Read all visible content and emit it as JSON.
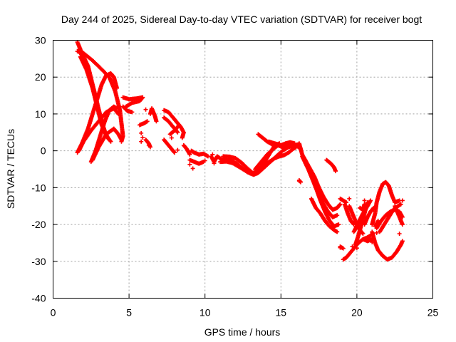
{
  "chart_data": {
    "type": "scatter",
    "title": "Day 244 of 2025, Sidereal Day-to-day VTEC variation (SDTVAR) for receiver bogt",
    "xlabel": "GPS time / hours",
    "ylabel": "SDTVAR / TECUs",
    "xlim": [
      0,
      25
    ],
    "ylim": [
      -40,
      30
    ],
    "x_ticks": [
      "0",
      "5",
      "10",
      "15",
      "20",
      "25"
    ],
    "y_ticks": [
      "30",
      "20",
      "10",
      "0",
      "-10",
      "-20",
      "-30",
      "-40"
    ],
    "grid": true,
    "legend": "none",
    "marker": "+",
    "color": "#ff0000",
    "tracks": [
      [
        [
          1.6,
          29.5
        ],
        [
          1.9,
          26.5
        ],
        [
          2.3,
          23
        ],
        [
          2.6,
          18
        ],
        [
          2.9,
          13
        ],
        [
          3.2,
          8
        ],
        [
          3.5,
          4
        ],
        [
          3.8,
          2.5
        ]
      ],
      [
        [
          1.7,
          27.5
        ],
        [
          2.1,
          24
        ],
        [
          2.5,
          19
        ],
        [
          2.8,
          14
        ],
        [
          3.1,
          9
        ],
        [
          3.4,
          5
        ],
        [
          3.7,
          3
        ]
      ],
      [
        [
          1.8,
          25.5
        ],
        [
          2.2,
          22
        ],
        [
          2.6,
          17
        ],
        [
          2.9,
          12
        ],
        [
          3.2,
          7
        ],
        [
          3.6,
          3.5
        ]
      ],
      [
        [
          1.6,
          27
        ],
        [
          2.0,
          26.5
        ],
        [
          2.6,
          24.5
        ],
        [
          3.1,
          22.5
        ],
        [
          3.7,
          20
        ],
        [
          4.1,
          16
        ],
        [
          4.4,
          11
        ],
        [
          4.6,
          4
        ],
        [
          4.5,
          2.5
        ]
      ],
      [
        [
          1.6,
          -0.5
        ],
        [
          1.9,
          2
        ],
        [
          2.3,
          6
        ],
        [
          2.6,
          10
        ],
        [
          2.9,
          14
        ],
        [
          3.2,
          18
        ],
        [
          3.5,
          20.5
        ],
        [
          3.8,
          21
        ],
        [
          4.0,
          20
        ],
        [
          4.2,
          17
        ]
      ],
      [
        [
          2.5,
          -3
        ],
        [
          2.8,
          0
        ],
        [
          3.1,
          4
        ],
        [
          3.4,
          8
        ],
        [
          3.7,
          11
        ],
        [
          4.0,
          12
        ],
        [
          4.2,
          11.5
        ]
      ],
      [
        [
          1.7,
          0
        ],
        [
          2.0,
          2.5
        ],
        [
          2.5,
          5.5
        ],
        [
          3.0,
          8
        ],
        [
          3.5,
          10.5
        ],
        [
          4.0,
          11.5
        ],
        [
          4.3,
          10
        ]
      ],
      [
        [
          2.6,
          -2.5
        ],
        [
          3.0,
          1
        ],
        [
          3.5,
          4.5
        ],
        [
          4.0,
          6
        ],
        [
          4.3,
          4.5
        ],
        [
          4.5,
          3
        ]
      ],
      [
        [
          4.6,
          14.5
        ],
        [
          5.0,
          14
        ],
        [
          5.5,
          14.2
        ],
        [
          5.9,
          14.5
        ],
        [
          5.7,
          13.5
        ],
        [
          5.2,
          13
        ],
        [
          4.8,
          12
        ]
      ],
      [
        [
          4.6,
          12
        ],
        [
          4.9,
          10.8
        ],
        [
          5.2,
          10.5
        ]
      ],
      [
        [
          5.7,
          7
        ],
        [
          6.0,
          7.5
        ],
        [
          6.2,
          8
        ]
      ],
      [
        [
          6.1,
          3
        ],
        [
          6.3,
          2
        ],
        [
          6.4,
          1
        ]
      ],
      [
        [
          6.4,
          10
        ],
        [
          6.5,
          11.5
        ],
        [
          6.7,
          9.5
        ],
        [
          6.8,
          8
        ]
      ],
      [
        [
          7.3,
          11
        ],
        [
          7.6,
          10.5
        ],
        [
          7.9,
          9
        ],
        [
          8.1,
          8
        ],
        [
          8.4,
          6.5
        ],
        [
          8.6,
          5
        ],
        [
          8.5,
          3.5
        ]
      ],
      [
        [
          7.3,
          9
        ],
        [
          7.6,
          8
        ],
        [
          7.9,
          6.5
        ],
        [
          8.2,
          5
        ]
      ],
      [
        [
          7.7,
          4.5
        ],
        [
          8.0,
          5.5
        ],
        [
          8.3,
          7
        ]
      ],
      [
        [
          7.3,
          3
        ],
        [
          7.6,
          1.5
        ],
        [
          7.9,
          0
        ],
        [
          8.0,
          -0.5
        ]
      ],
      [
        [
          8.6,
          1.5
        ],
        [
          8.8,
          0.5
        ],
        [
          9.0,
          -1
        ]
      ],
      [
        [
          9.1,
          0
        ],
        [
          9.3,
          -0.5
        ],
        [
          9.6,
          -1
        ],
        [
          9.9,
          -0.8
        ],
        [
          10.2,
          -1.5
        ]
      ],
      [
        [
          9.0,
          -2.5
        ],
        [
          9.3,
          -3
        ],
        [
          9.6,
          -3.5
        ],
        [
          9.9,
          -3
        ]
      ],
      [
        [
          10.4,
          -1.5
        ],
        [
          10.6,
          -3
        ],
        [
          10.8,
          -1.5
        ],
        [
          11.1,
          -2.3
        ],
        [
          11.4,
          -2.4
        ],
        [
          11.8,
          -2.8
        ],
        [
          12.1,
          -3.5
        ],
        [
          12.4,
          -4.5
        ],
        [
          12.8,
          -5.8
        ],
        [
          13.1,
          -6.2
        ],
        [
          13.4,
          -5.5
        ],
        [
          13.7,
          -4.6
        ],
        [
          14.0,
          -3.5
        ],
        [
          14.3,
          -2.8
        ],
        [
          14.6,
          -2
        ],
        [
          14.9,
          -1.5
        ],
        [
          15.2,
          -1.2
        ],
        [
          15.5,
          -0.5
        ],
        [
          15.8,
          0.5
        ],
        [
          16.0,
          1
        ]
      ],
      [
        [
          11.0,
          -3
        ],
        [
          11.4,
          -2.9
        ],
        [
          11.8,
          -3.3
        ],
        [
          12.1,
          -4
        ],
        [
          12.5,
          -5
        ],
        [
          12.9,
          -6
        ],
        [
          13.2,
          -6.5
        ],
        [
          13.5,
          -6
        ],
        [
          13.9,
          -4.5
        ],
        [
          14.3,
          -3
        ],
        [
          14.7,
          -1.5
        ],
        [
          15.1,
          0
        ],
        [
          15.5,
          1
        ],
        [
          15.9,
          1.5
        ],
        [
          16.2,
          1.8
        ]
      ],
      [
        [
          11.2,
          -1.5
        ],
        [
          11.6,
          -1.6
        ],
        [
          12.0,
          -2
        ],
        [
          12.4,
          -3.2
        ],
        [
          12.8,
          -4.8
        ],
        [
          13.2,
          -6.2
        ],
        [
          13.6,
          -5
        ],
        [
          14.0,
          -2.5
        ],
        [
          14.3,
          -0.5
        ],
        [
          14.6,
          1.5
        ],
        [
          14.9,
          2
        ]
      ],
      [
        [
          13.3,
          -5
        ],
        [
          13.7,
          -3
        ],
        [
          14.1,
          -1
        ],
        [
          14.5,
          0.5
        ],
        [
          14.8,
          1.5
        ]
      ],
      [
        [
          13.5,
          4.5
        ],
        [
          13.8,
          3.5
        ],
        [
          14.1,
          2.5
        ],
        [
          14.4,
          1.8
        ],
        [
          14.8,
          1.5
        ],
        [
          15.1,
          1
        ],
        [
          15.4,
          1.5
        ],
        [
          15.7,
          2
        ],
        [
          16.0,
          1.5
        ],
        [
          16.3,
          0.5
        ]
      ],
      [
        [
          14.2,
          2.5
        ],
        [
          14.6,
          2
        ],
        [
          15.0,
          1.5
        ],
        [
          15.3,
          2
        ],
        [
          15.6,
          2.3
        ],
        [
          15.9,
          2
        ]
      ],
      [
        [
          16.2,
          2
        ],
        [
          16.4,
          -1
        ],
        [
          16.8,
          -4
        ],
        [
          17.2,
          -7
        ],
        [
          17.5,
          -10
        ],
        [
          17.8,
          -12.5
        ],
        [
          18.1,
          -14.5
        ],
        [
          18.4,
          -16
        ],
        [
          18.7,
          -15.5
        ],
        [
          18.9,
          -14.5
        ]
      ],
      [
        [
          16.4,
          -1.5
        ],
        [
          16.8,
          -5
        ],
        [
          17.2,
          -9
        ],
        [
          17.5,
          -12
        ],
        [
          17.8,
          -14.5
        ],
        [
          18.1,
          -16.5
        ],
        [
          18.4,
          -18
        ],
        [
          18.7,
          -17.5
        ]
      ],
      [
        [
          16.6,
          -2.5
        ],
        [
          17.0,
          -6.5
        ],
        [
          17.3,
          -10
        ],
        [
          17.6,
          -13.5
        ],
        [
          17.9,
          -16.5
        ],
        [
          18.2,
          -19
        ],
        [
          18.5,
          -20.5
        ],
        [
          18.8,
          -20
        ]
      ],
      [
        [
          17.0,
          -13
        ],
        [
          17.3,
          -15.5
        ],
        [
          17.6,
          -17
        ],
        [
          17.9,
          -19
        ],
        [
          18.2,
          -20.5
        ],
        [
          18.5,
          -21.5
        ],
        [
          18.7,
          -22
        ]
      ],
      [
        [
          16.2,
          -8
        ],
        [
          16.3,
          -8.5
        ]
      ],
      [
        [
          18.0,
          -2.5
        ],
        [
          18.3,
          -3.5
        ],
        [
          18.5,
          -4.5
        ],
        [
          18.6,
          -5.5
        ]
      ],
      [
        [
          18.9,
          -13
        ],
        [
          19.1,
          -13.5
        ],
        [
          19.3,
          -14
        ]
      ],
      [
        [
          19.2,
          -14.5
        ],
        [
          19.4,
          -17
        ],
        [
          19.6,
          -19
        ],
        [
          19.8,
          -20
        ]
      ],
      [
        [
          18.9,
          -26
        ],
        [
          19.1,
          -26.5
        ]
      ],
      [
        [
          19.1,
          -29.5
        ],
        [
          19.3,
          -29
        ],
        [
          19.5,
          -28
        ],
        [
          19.8,
          -26.5
        ],
        [
          20.1,
          -25
        ],
        [
          20.4,
          -24
        ],
        [
          20.7,
          -23.5
        ],
        [
          20.9,
          -23
        ]
      ],
      [
        [
          19.9,
          -25.5
        ],
        [
          20.1,
          -23
        ],
        [
          20.3,
          -20
        ],
        [
          20.5,
          -17
        ],
        [
          20.7,
          -14
        ]
      ],
      [
        [
          19.5,
          -15
        ],
        [
          19.8,
          -18
        ],
        [
          20.1,
          -21
        ],
        [
          20.4,
          -22.5
        ]
      ],
      [
        [
          19.8,
          -22
        ],
        [
          20.1,
          -19.5
        ],
        [
          20.4,
          -17
        ],
        [
          20.7,
          -15
        ],
        [
          20.9,
          -13.5
        ]
      ],
      [
        [
          20.5,
          -20
        ],
        [
          20.7,
          -18
        ],
        [
          20.9,
          -16.5
        ],
        [
          21.1,
          -15.5
        ]
      ],
      [
        [
          20.4,
          -24
        ],
        [
          20.7,
          -24.5
        ],
        [
          21.0,
          -24
        ]
      ],
      [
        [
          21.0,
          -20
        ],
        [
          21.2,
          -17
        ],
        [
          21.3,
          -14
        ],
        [
          21.5,
          -11
        ],
        [
          21.7,
          -9
        ],
        [
          21.9,
          -8.5
        ],
        [
          22.1,
          -9.5
        ],
        [
          22.3,
          -12
        ],
        [
          22.5,
          -14
        ],
        [
          22.8,
          -13.5
        ]
      ],
      [
        [
          21.0,
          -22
        ],
        [
          21.2,
          -25
        ],
        [
          21.4,
          -27
        ],
        [
          21.7,
          -28.5
        ],
        [
          22.0,
          -29.5
        ],
        [
          22.3,
          -29
        ],
        [
          22.6,
          -27.5
        ],
        [
          22.9,
          -25.5
        ],
        [
          23.0,
          -24.5
        ]
      ],
      [
        [
          21.5,
          -22
        ],
        [
          21.8,
          -20
        ],
        [
          22.1,
          -18
        ],
        [
          22.4,
          -16
        ],
        [
          22.7,
          -15
        ],
        [
          22.9,
          -14.5
        ]
      ],
      [
        [
          21.3,
          -21
        ],
        [
          21.6,
          -19
        ],
        [
          21.9,
          -17.5
        ],
        [
          22.2,
          -16.5
        ],
        [
          22.5,
          -16
        ],
        [
          22.8,
          -16.5
        ],
        [
          23.0,
          -18
        ]
      ],
      [
        [
          22.5,
          -15
        ],
        [
          22.7,
          -17
        ],
        [
          22.9,
          -19
        ],
        [
          23.0,
          -20
        ]
      ],
      [
        [
          20.2,
          -15.5
        ],
        [
          20.4,
          -16
        ],
        [
          20.5,
          -14.5
        ]
      ],
      [
        [
          21.2,
          -20.5
        ],
        [
          21.4,
          -19
        ]
      ]
    ],
    "points": [
      [
        5.8,
        4.8
      ],
      [
        5.9,
        3.6
      ],
      [
        5.8,
        2.5
      ],
      [
        6.3,
        1.5
      ],
      [
        6.1,
        11.2
      ],
      [
        7.8,
        3.5
      ],
      [
        8.2,
        0.2
      ],
      [
        9.2,
        -4.8
      ],
      [
        9.0,
        -3.7
      ],
      [
        10.0,
        -2.7
      ],
      [
        10.5,
        -1.0
      ],
      [
        10.6,
        -3.4
      ],
      [
        11.3,
        -2.1
      ],
      [
        18.9,
        -26.3
      ],
      [
        19.7,
        -26.0
      ],
      [
        20.0,
        -26.4
      ],
      [
        20.8,
        -24.2
      ],
      [
        21.0,
        -24.8
      ],
      [
        21.3,
        -22.3
      ],
      [
        20.6,
        -15.3
      ],
      [
        21.1,
        -16.0
      ],
      [
        20.5,
        -13.5
      ],
      [
        16.2,
        -8.2
      ],
      [
        19.5,
        -13.0
      ],
      [
        22.8,
        -22.5
      ],
      [
        23.0,
        -13.5
      ]
    ]
  }
}
